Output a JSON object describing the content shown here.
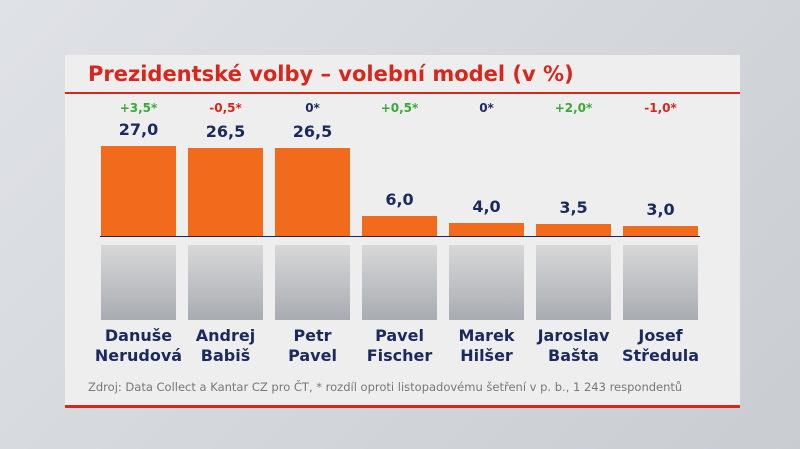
{
  "chart_data": {
    "type": "bar",
    "title": "Prezidentské volby – volební model (v %)",
    "categories": [
      "Danuše Nerudová",
      "Andrej Babiš",
      "Petr Pavel",
      "Pavel Fischer",
      "Marek Hilšer",
      "Jaroslav Bašta",
      "Josef Středula"
    ],
    "values": [
      27.0,
      26.5,
      26.5,
      6.0,
      4.0,
      3.5,
      3.0
    ],
    "value_labels": [
      "27,0",
      "26,5",
      "26,5",
      "6,0",
      "4,0",
      "3,5",
      "3,0"
    ],
    "changes": [
      "+3,5*",
      "-0,5*",
      "0*",
      "+0,5*",
      "0*",
      "+2,0*",
      "-1,0*"
    ],
    "change_colors": [
      "#3aaa35",
      "#d9261c",
      "#1a2a5e",
      "#3aaa35",
      "#1a2a5e",
      "#3aaa35",
      "#d9261c"
    ],
    "color": "#f26a1b",
    "ylim": [
      0,
      27
    ],
    "source": "Zdroj: Data Collect a Kantar CZ pro ČT, * rozdíl oproti listopadovému šetření v p. b., 1 243 respondentů"
  }
}
